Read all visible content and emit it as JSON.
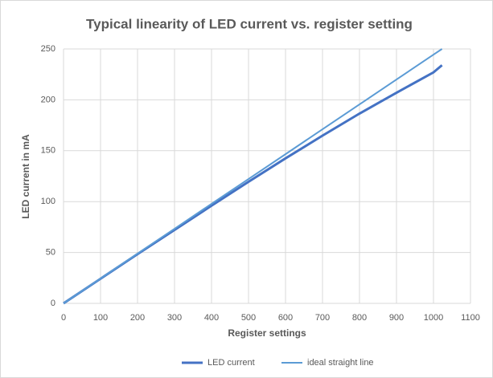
{
  "chart_data": {
    "type": "line",
    "title": "Typical linearity of LED current vs. register setting",
    "x_label": "Register settings",
    "y_label": "LED current in mA",
    "x": [
      0,
      100,
      200,
      300,
      400,
      500,
      600,
      700,
      800,
      900,
      1000,
      1023
    ],
    "series": [
      {
        "name": "LED current",
        "color": "#4472c4",
        "values": [
          0,
          24.2,
          48.4,
          72.2,
          96,
          119.5,
          142.5,
          164.8,
          186.5,
          207,
          227,
          234
        ]
      },
      {
        "name": "ideal straight line",
        "color": "#5b9bd5",
        "values": [
          0,
          24.4,
          48.9,
          73.3,
          97.8,
          122.2,
          146.6,
          171.1,
          195.5,
          220,
          244.4,
          250
        ]
      }
    ],
    "xlim": [
      0,
      1100
    ],
    "xticks": [
      0,
      100,
      200,
      300,
      400,
      500,
      600,
      700,
      800,
      900,
      1000,
      1100
    ],
    "ylim": [
      0,
      250
    ],
    "yticks": [
      0,
      50,
      100,
      150,
      200,
      250
    ],
    "grid": true,
    "legend": "bottom"
  }
}
